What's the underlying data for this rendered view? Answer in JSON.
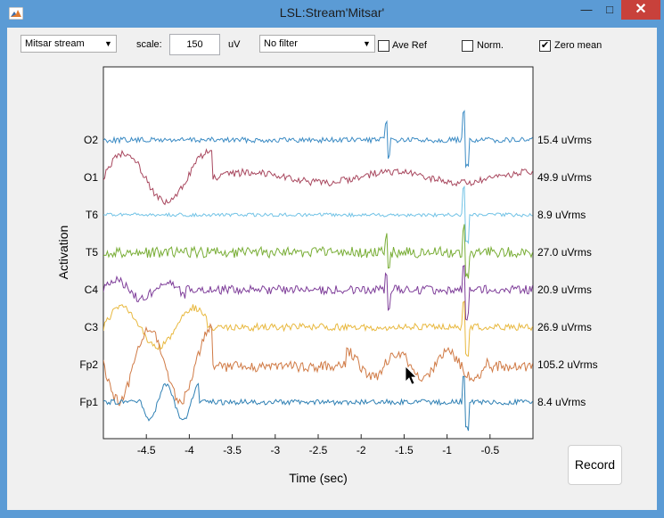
{
  "window": {
    "title": "LSL:Stream'Mitsar'",
    "minimize_glyph": "—",
    "maximize_glyph": "□",
    "close_glyph": "✕"
  },
  "toolbar": {
    "stream_select": "Mitsar stream",
    "scale_label": "scale:",
    "scale_value": "150",
    "scale_unit": "uV",
    "filter_select": "No filter",
    "ave_ref": {
      "label": "Ave Ref",
      "checked": false
    },
    "norm": {
      "label": "Norm.",
      "checked": false
    },
    "zero_mean": {
      "label": "Zero mean",
      "checked": true
    }
  },
  "chart_data": {
    "type": "line",
    "xlabel": "Time (sec)",
    "ylabel": "Activation",
    "xlim": [
      -5.0,
      0.0
    ],
    "xticks": [
      "-4.5",
      "-4",
      "-3.5",
      "-3",
      "-2.5",
      "-2",
      "-1.5",
      "-1",
      "-0.5"
    ],
    "channels": [
      {
        "name": "O2",
        "rms": "15.4 uVrms",
        "color": "#3b8bc4"
      },
      {
        "name": "O1",
        "rms": "49.9 uVrms",
        "color": "#a8475e"
      },
      {
        "name": "T6",
        "rms": "8.9 uVrms",
        "color": "#72c3e6"
      },
      {
        "name": "T5",
        "rms": "27.0 uVrms",
        "color": "#78ad35"
      },
      {
        "name": "C4",
        "rms": "20.9 uVrms",
        "color": "#7e3d99"
      },
      {
        "name": "C3",
        "rms": "26.9 uVrms",
        "color": "#e8b83e"
      },
      {
        "name": "Fp2",
        "rms": "105.2 uVrms",
        "color": "#d07a45"
      },
      {
        "name": "Fp1",
        "rms": "8.4 uVrms",
        "color": "#2f80b4"
      }
    ]
  },
  "record_button": "Record"
}
